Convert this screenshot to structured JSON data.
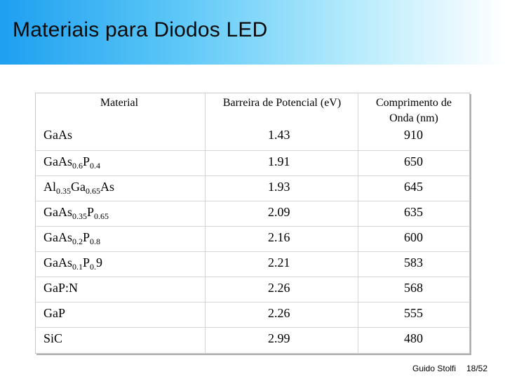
{
  "title": "Materiais para Diodos LED",
  "headers": {
    "material": "Material",
    "barrier": "Barreira de Potencial (eV)",
    "wavelength": "Comprimento de Onda (nm)"
  },
  "rows": [
    {
      "material": [
        {
          "t": "GaAs"
        }
      ],
      "barrier": "1.43",
      "wavelength": "910"
    },
    {
      "material": [
        {
          "t": "GaAs"
        },
        {
          "s": "0.6"
        },
        {
          "t": "P"
        },
        {
          "s": "0.4"
        }
      ],
      "barrier": "1.91",
      "wavelength": "650"
    },
    {
      "material": [
        {
          "t": "Al"
        },
        {
          "s": "0.35"
        },
        {
          "t": "Ga"
        },
        {
          "s": "0.65"
        },
        {
          "t": "As"
        }
      ],
      "barrier": "1.93",
      "wavelength": "645"
    },
    {
      "material": [
        {
          "t": "GaAs"
        },
        {
          "s": "0.35"
        },
        {
          "t": "P"
        },
        {
          "s": "0.65"
        }
      ],
      "barrier": "2.09",
      "wavelength": "635"
    },
    {
      "material": [
        {
          "t": "GaAs"
        },
        {
          "s": "0.2"
        },
        {
          "t": "P"
        },
        {
          "s": "0.8"
        }
      ],
      "barrier": "2.16",
      "wavelength": "600"
    },
    {
      "material": [
        {
          "t": "GaAs"
        },
        {
          "s": "0.1"
        },
        {
          "t": "P"
        },
        {
          "s": "0."
        },
        {
          "t": "9"
        }
      ],
      "barrier": "2.21",
      "wavelength": "583"
    },
    {
      "material": [
        {
          "t": "GaP:N"
        }
      ],
      "barrier": "2.26",
      "wavelength": "568"
    },
    {
      "material": [
        {
          "t": "GaP"
        }
      ],
      "barrier": "2.26",
      "wavelength": "555"
    },
    {
      "material": [
        {
          "t": "SiC"
        }
      ],
      "barrier": "2.99",
      "wavelength": "480"
    }
  ],
  "footer": {
    "author": "Guido Stolfi",
    "page": "18/52"
  }
}
